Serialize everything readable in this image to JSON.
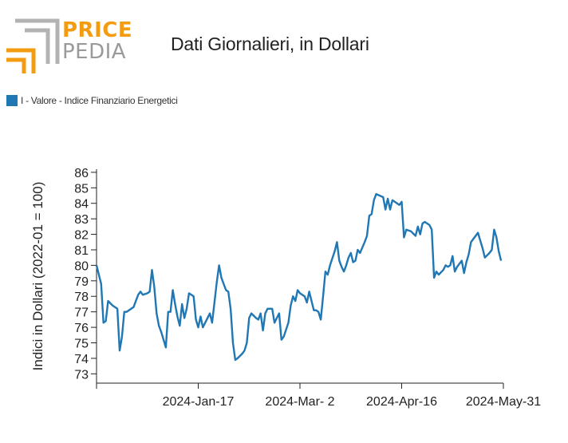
{
  "header": {
    "logo_price": "PRICE",
    "logo_pedia": "PEDIA",
    "title": "Dati Giornalieri, in Dollari"
  },
  "colors": {
    "accent": "#f39c12",
    "logo_grey": "#b3b3b3",
    "series": "#1f77b4"
  },
  "chart_data": {
    "type": "line",
    "ylabel": "Indici in Dollari (2022-01 = 100)",
    "xlabel": "",
    "ylim": [
      72.4,
      86.2
    ],
    "y_ticks": [
      73,
      74,
      75,
      76,
      77,
      78,
      79,
      80,
      81,
      82,
      83,
      84,
      85,
      86
    ],
    "x_ticks": [
      {
        "label": "",
        "day": 0
      },
      {
        "label": "2024-Jan-17",
        "day": 44
      },
      {
        "label": "2024-Mar- 2",
        "day": 88
      },
      {
        "label": "2024-Apr-16",
        "day": 132
      },
      {
        "label": "2024-May-31",
        "day": 176
      }
    ],
    "legend": "top-left",
    "grid": false,
    "series": [
      {
        "name": "I - Valore - Indice Finanziario Energetici",
        "color": "#1f77b4",
        "points": [
          [
            0,
            80.0
          ],
          [
            2,
            78.8
          ],
          [
            3,
            76.3
          ],
          [
            4,
            76.4
          ],
          [
            5,
            77.7
          ],
          [
            7,
            77.4
          ],
          [
            9,
            77.2
          ],
          [
            10,
            74.5
          ],
          [
            11,
            75.4
          ],
          [
            12,
            77.0
          ],
          [
            13,
            77.0
          ],
          [
            14,
            77.1
          ],
          [
            16,
            77.3
          ],
          [
            18,
            78.1
          ],
          [
            19,
            78.3
          ],
          [
            20,
            78.1
          ],
          [
            22,
            78.2
          ],
          [
            23,
            78.3
          ],
          [
            24,
            79.7
          ],
          [
            25,
            78.6
          ],
          [
            26,
            76.9
          ],
          [
            27,
            76.1
          ],
          [
            28,
            75.7
          ],
          [
            30,
            74.7
          ],
          [
            31,
            77.0
          ],
          [
            32,
            77.0
          ],
          [
            33,
            78.4
          ],
          [
            34,
            77.5
          ],
          [
            35,
            76.7
          ],
          [
            36,
            76.1
          ],
          [
            37,
            77.5
          ],
          [
            38,
            76.6
          ],
          [
            39,
            77.2
          ],
          [
            40,
            78.2
          ],
          [
            41,
            78.1
          ],
          [
            42,
            78.0
          ],
          [
            43,
            76.5
          ],
          [
            44,
            76.0
          ],
          [
            45,
            76.7
          ],
          [
            46,
            76.0
          ],
          [
            47,
            76.3
          ],
          [
            49,
            76.9
          ],
          [
            50,
            76.3
          ],
          [
            52,
            78.9
          ],
          [
            53,
            80.0
          ],
          [
            54,
            79.2
          ],
          [
            56,
            78.4
          ],
          [
            57,
            78.3
          ],
          [
            58,
            77.2
          ],
          [
            59,
            75.0
          ],
          [
            60,
            73.9
          ],
          [
            61,
            74.0
          ],
          [
            63,
            74.3
          ],
          [
            64,
            74.5
          ],
          [
            65,
            75.0
          ],
          [
            66,
            76.6
          ],
          [
            67,
            76.9
          ],
          [
            69,
            76.6
          ],
          [
            70,
            76.5
          ],
          [
            71,
            76.9
          ],
          [
            72,
            75.8
          ],
          [
            73,
            76.9
          ],
          [
            74,
            77.2
          ],
          [
            76,
            77.2
          ],
          [
            77,
            76.3
          ],
          [
            78,
            76.6
          ],
          [
            79,
            76.9
          ],
          [
            80,
            75.2
          ],
          [
            81,
            75.4
          ],
          [
            83,
            76.3
          ],
          [
            84,
            77.4
          ],
          [
            85,
            78.0
          ],
          [
            86,
            77.7
          ],
          [
            87,
            78.4
          ],
          [
            88,
            78.2
          ],
          [
            90,
            78.0
          ],
          [
            91,
            77.6
          ],
          [
            92,
            78.3
          ],
          [
            94,
            77.1
          ],
          [
            95,
            77.1
          ],
          [
            96,
            77.0
          ],
          [
            97,
            76.5
          ],
          [
            98,
            78.0
          ],
          [
            99,
            79.6
          ],
          [
            100,
            79.4
          ],
          [
            101,
            80.0
          ],
          [
            103,
            80.9
          ],
          [
            104,
            81.5
          ],
          [
            105,
            80.3
          ],
          [
            106,
            79.9
          ],
          [
            107,
            79.6
          ],
          [
            108,
            80.0
          ],
          [
            109,
            80.5
          ],
          [
            110,
            80.8
          ],
          [
            111,
            80.2
          ],
          [
            112,
            80.3
          ],
          [
            113,
            81.0
          ],
          [
            114,
            80.8
          ],
          [
            116,
            81.5
          ],
          [
            117,
            81.9
          ],
          [
            118,
            83.2
          ],
          [
            119,
            83.3
          ],
          [
            120,
            84.2
          ],
          [
            121,
            84.6
          ],
          [
            124,
            84.4
          ],
          [
            125,
            83.6
          ],
          [
            126,
            84.3
          ],
          [
            127,
            83.6
          ],
          [
            128,
            84.2
          ],
          [
            130,
            84.0
          ],
          [
            131,
            83.9
          ],
          [
            132,
            84.1
          ],
          [
            133,
            81.8
          ],
          [
            134,
            82.3
          ],
          [
            136,
            82.2
          ],
          [
            138,
            81.9
          ],
          [
            139,
            82.5
          ],
          [
            140,
            82.0
          ],
          [
            141,
            82.7
          ],
          [
            142,
            82.8
          ],
          [
            144,
            82.6
          ],
          [
            145,
            82.3
          ],
          [
            146,
            79.2
          ],
          [
            147,
            79.6
          ],
          [
            148,
            79.4
          ],
          [
            150,
            79.7
          ],
          [
            151,
            80.0
          ],
          [
            152,
            79.9
          ],
          [
            153,
            80.0
          ],
          [
            154,
            80.6
          ],
          [
            155,
            79.6
          ],
          [
            156,
            79.9
          ],
          [
            158,
            80.3
          ],
          [
            159,
            79.5
          ],
          [
            160,
            80.2
          ],
          [
            161,
            80.7
          ],
          [
            162,
            81.5
          ],
          [
            163,
            81.7
          ],
          [
            165,
            82.1
          ],
          [
            166,
            81.6
          ],
          [
            167,
            81.1
          ],
          [
            168,
            80.5
          ],
          [
            170,
            80.8
          ],
          [
            171,
            81.0
          ],
          [
            172,
            82.3
          ],
          [
            173,
            81.8
          ],
          [
            174,
            80.9
          ],
          [
            175,
            80.3
          ]
        ]
      }
    ]
  }
}
